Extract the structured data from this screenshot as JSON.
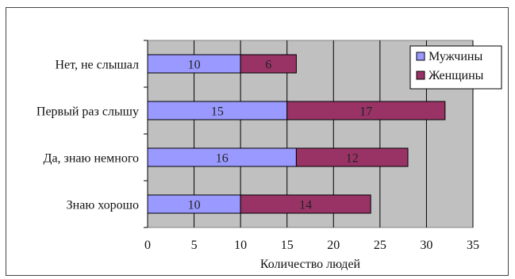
{
  "chart_data": {
    "type": "bar",
    "orientation": "horizontal",
    "stacked": true,
    "categories": [
      "Нет, не слышал",
      "Первый раз слышу",
      "Да, знаю немного",
      "Знаю хорошо"
    ],
    "series": [
      {
        "name": "Мужчины",
        "values": [
          10,
          15,
          16,
          10
        ],
        "color": "#9999ff"
      },
      {
        "name": "Женщины",
        "values": [
          6,
          17,
          12,
          14
        ],
        "color": "#993366"
      }
    ],
    "xlabel": "Количество людей",
    "ylabel": "",
    "xlim": [
      0,
      35
    ],
    "xticks": [
      0,
      5,
      10,
      15,
      20,
      25,
      30,
      35
    ],
    "grid": true,
    "plot_background": "#c0c0c0",
    "legend_position": "top-right"
  }
}
